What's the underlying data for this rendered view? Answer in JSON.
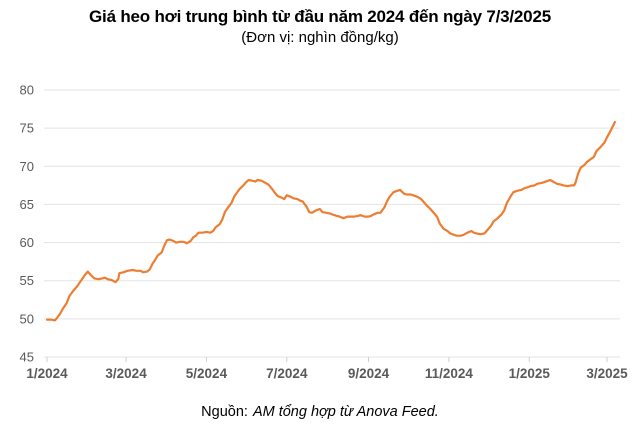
{
  "header": {
    "title": "Giá heo hơi trung bình từ đầu năm 2024 đến ngày 7/3/2025",
    "subtitle": "(Đơn vị: nghìn đồng/kg)"
  },
  "footer": {
    "source_label": "Nguồn:",
    "source_text": "AM tổng hợp từ Anova Feed."
  },
  "chart_data": {
    "type": "line",
    "title": "Giá heo hơi trung bình từ đầu năm 2024 đến ngày 7/3/2025",
    "unit_label": "(Đơn vị: nghìn đồng/kg)",
    "xlabel": "",
    "ylabel": "nghìn đồng/kg",
    "ylim": [
      45,
      80
    ],
    "y_ticks": [
      45,
      50,
      55,
      60,
      65,
      70,
      75,
      80
    ],
    "x_ticks": [
      {
        "label": "1/2024",
        "day": 0
      },
      {
        "label": "3/2024",
        "day": 60
      },
      {
        "label": "5/2024",
        "day": 121
      },
      {
        "label": "7/2024",
        "day": 182
      },
      {
        "label": "9/2024",
        "day": 244
      },
      {
        "label": "11/2024",
        "day": 305
      },
      {
        "label": "1/2025",
        "day": 366
      },
      {
        "label": "3/2025",
        "day": 425
      }
    ],
    "xlim_days": [
      0,
      433
    ],
    "grid": true,
    "legend": "none",
    "colors": {
      "line": "#ED7D31",
      "grid": "#e3e3e3",
      "tick": "#d0d0d0",
      "axis_text": "#595959"
    },
    "series": [
      {
        "name": "Giá heo hơi trung bình (nghìn đồng/kg)",
        "color": "#ED7D31",
        "points": [
          [
            0,
            49.9
          ],
          [
            3,
            49.9
          ],
          [
            6,
            49.8
          ],
          [
            8,
            50.2
          ],
          [
            10,
            50.7
          ],
          [
            12,
            51.3
          ],
          [
            15,
            52.1
          ],
          [
            17,
            53.0
          ],
          [
            20,
            53.7
          ],
          [
            23,
            54.3
          ],
          [
            25,
            54.8
          ],
          [
            27,
            55.3
          ],
          [
            29,
            55.8
          ],
          [
            31,
            56.2
          ],
          [
            34,
            55.6
          ],
          [
            36,
            55.3
          ],
          [
            39,
            55.2
          ],
          [
            42,
            55.3
          ],
          [
            44,
            55.4
          ],
          [
            46,
            55.2
          ],
          [
            49,
            55.1
          ],
          [
            52,
            54.8
          ],
          [
            54,
            55.2
          ],
          [
            55,
            56.0
          ],
          [
            58,
            56.1
          ],
          [
            61,
            56.3
          ],
          [
            65,
            56.4
          ],
          [
            68,
            56.3
          ],
          [
            71,
            56.3
          ],
          [
            73,
            56.1
          ],
          [
            76,
            56.2
          ],
          [
            78,
            56.5
          ],
          [
            80,
            57.2
          ],
          [
            82,
            57.7
          ],
          [
            84,
            58.3
          ],
          [
            87,
            58.7
          ],
          [
            89,
            59.6
          ],
          [
            91,
            60.3
          ],
          [
            93,
            60.4
          ],
          [
            96,
            60.2
          ],
          [
            98,
            60.0
          ],
          [
            101,
            60.1
          ],
          [
            104,
            60.1
          ],
          [
            106,
            59.9
          ],
          [
            109,
            60.2
          ],
          [
            111,
            60.7
          ],
          [
            113,
            60.9
          ],
          [
            115,
            61.3
          ],
          [
            118,
            61.3
          ],
          [
            121,
            61.4
          ],
          [
            124,
            61.3
          ],
          [
            126,
            61.5
          ],
          [
            128,
            62.0
          ],
          [
            131,
            62.4
          ],
          [
            133,
            63.0
          ],
          [
            135,
            64.0
          ],
          [
            137,
            64.5
          ],
          [
            140,
            65.2
          ],
          [
            142,
            66.0
          ],
          [
            144,
            66.5
          ],
          [
            146,
            67.0
          ],
          [
            149,
            67.5
          ],
          [
            151,
            67.9
          ],
          [
            153,
            68.2
          ],
          [
            156,
            68.1
          ],
          [
            158,
            68.0
          ],
          [
            160,
            68.2
          ],
          [
            163,
            68.1
          ],
          [
            165,
            67.9
          ],
          [
            168,
            67.6
          ],
          [
            171,
            67.0
          ],
          [
            173,
            66.5
          ],
          [
            175,
            66.1
          ],
          [
            178,
            65.9
          ],
          [
            180,
            65.7
          ],
          [
            182,
            66.2
          ],
          [
            185,
            66.0
          ],
          [
            187,
            65.8
          ],
          [
            190,
            65.7
          ],
          [
            192,
            65.5
          ],
          [
            194,
            65.4
          ],
          [
            197,
            64.7
          ],
          [
            199,
            64.0
          ],
          [
            201,
            63.9
          ],
          [
            204,
            64.2
          ],
          [
            207,
            64.4
          ],
          [
            209,
            64.0
          ],
          [
            212,
            63.9
          ],
          [
            215,
            63.8
          ],
          [
            218,
            63.6
          ],
          [
            220,
            63.5
          ],
          [
            222,
            63.4
          ],
          [
            225,
            63.2
          ],
          [
            228,
            63.4
          ],
          [
            231,
            63.4
          ],
          [
            233,
            63.4
          ],
          [
            236,
            63.5
          ],
          [
            238,
            63.6
          ],
          [
            241,
            63.4
          ],
          [
            244,
            63.4
          ],
          [
            246,
            63.5
          ],
          [
            248,
            63.7
          ],
          [
            251,
            63.9
          ],
          [
            253,
            63.9
          ],
          [
            256,
            64.6
          ],
          [
            258,
            65.4
          ],
          [
            260,
            66.0
          ],
          [
            263,
            66.6
          ],
          [
            266,
            66.8
          ],
          [
            268,
            66.9
          ],
          [
            271,
            66.4
          ],
          [
            273,
            66.3
          ],
          [
            276,
            66.3
          ],
          [
            278,
            66.2
          ],
          [
            281,
            66.0
          ],
          [
            284,
            65.7
          ],
          [
            286,
            65.3
          ],
          [
            288,
            64.9
          ],
          [
            291,
            64.4
          ],
          [
            294,
            63.8
          ],
          [
            296,
            63.4
          ],
          [
            298,
            62.5
          ],
          [
            301,
            61.8
          ],
          [
            304,
            61.5
          ],
          [
            306,
            61.2
          ],
          [
            309,
            61.0
          ],
          [
            311,
            60.9
          ],
          [
            314,
            60.9
          ],
          [
            316,
            61.0
          ],
          [
            319,
            61.3
          ],
          [
            322,
            61.5
          ],
          [
            324,
            61.3
          ],
          [
            326,
            61.2
          ],
          [
            329,
            61.1
          ],
          [
            332,
            61.2
          ],
          [
            334,
            61.6
          ],
          [
            337,
            62.2
          ],
          [
            339,
            62.8
          ],
          [
            342,
            63.2
          ],
          [
            345,
            63.7
          ],
          [
            347,
            64.2
          ],
          [
            349,
            65.2
          ],
          [
            352,
            66.1
          ],
          [
            354,
            66.6
          ],
          [
            357,
            66.8
          ],
          [
            360,
            66.9
          ],
          [
            362,
            67.1
          ],
          [
            364,
            67.2
          ],
          [
            367,
            67.4
          ],
          [
            370,
            67.5
          ],
          [
            372,
            67.7
          ],
          [
            375,
            67.8
          ],
          [
            377,
            67.9
          ],
          [
            380,
            68.1
          ],
          [
            382,
            68.2
          ],
          [
            385,
            67.9
          ],
          [
            387,
            67.7
          ],
          [
            390,
            67.6
          ],
          [
            392,
            67.5
          ],
          [
            395,
            67.4
          ],
          [
            398,
            67.5
          ],
          [
            400,
            67.5
          ],
          [
            401,
            67.8
          ],
          [
            403,
            69.0
          ],
          [
            405,
            69.8
          ],
          [
            408,
            70.2
          ],
          [
            410,
            70.6
          ],
          [
            413,
            71.0
          ],
          [
            415,
            71.2
          ],
          [
            417,
            72.0
          ],
          [
            420,
            72.5
          ],
          [
            423,
            73.1
          ],
          [
            425,
            73.8
          ],
          [
            427,
            74.4
          ],
          [
            429,
            75.1
          ],
          [
            431,
            75.8
          ]
        ]
      }
    ]
  }
}
